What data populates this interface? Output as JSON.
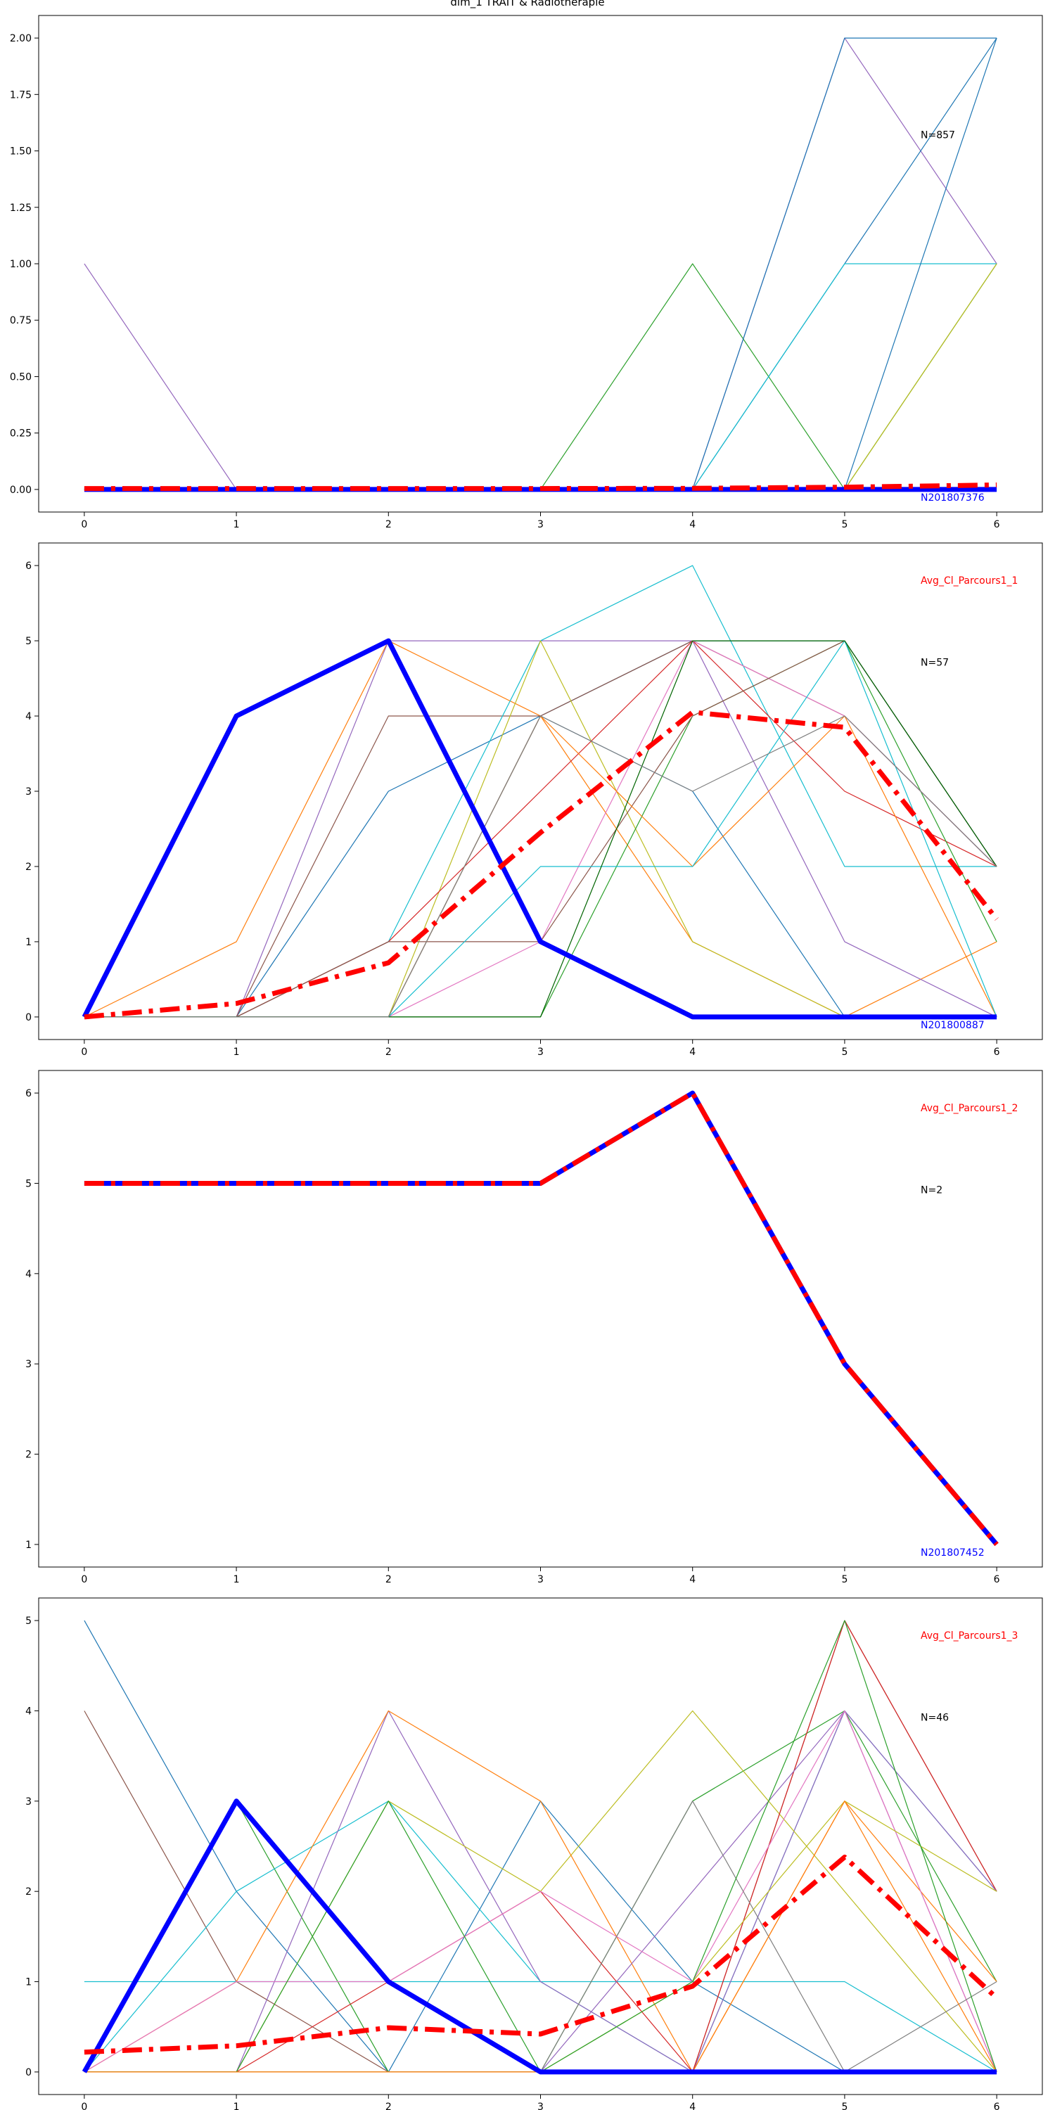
{
  "figure": {
    "title": "dim_1 TRAIT & Radiothérapie"
  },
  "chart_data": [
    {
      "type": "line",
      "title": "",
      "x": [
        0,
        1,
        2,
        3,
        4,
        5,
        6
      ],
      "ylim": [
        -0.1,
        2.1
      ],
      "yticks": [
        0.0,
        0.25,
        0.5,
        0.75,
        1.0,
        1.25,
        1.5,
        1.75,
        2.0
      ],
      "ytick_labels": [
        "0.00",
        "0.25",
        "0.50",
        "0.75",
        "1.00",
        "1.25",
        "1.50",
        "1.75",
        "2.00"
      ],
      "annotations": {
        "count_label": "N=857",
        "average_label": "",
        "highlight_label": "N201807376"
      },
      "colors": {
        "average": "#ff0000",
        "highlight": "#0000ff"
      },
      "series": [
        {
          "values": [
            1,
            0,
            0,
            0,
            0,
            2,
            1
          ],
          "color": "#9467bd"
        },
        {
          "values": [
            0,
            0,
            0,
            0,
            1,
            0,
            1
          ],
          "color": "#2ca02c"
        },
        {
          "values": [
            0,
            0,
            0,
            0,
            0,
            2,
            2
          ],
          "color": "#1f77b4"
        },
        {
          "values": [
            0,
            0,
            0,
            0,
            0,
            1,
            2
          ],
          "color": "#1f77b4"
        },
        {
          "values": [
            0,
            0,
            0,
            0,
            0,
            1,
            1
          ],
          "color": "#17becf"
        },
        {
          "values": [
            0,
            0,
            0,
            0,
            0,
            0,
            2
          ],
          "color": "#1f77b4"
        },
        {
          "values": [
            0,
            0,
            0,
            0,
            0,
            0,
            1
          ],
          "color": "#bcbd22"
        }
      ],
      "highlight": {
        "values": [
          0,
          0,
          0,
          0,
          0,
          0,
          0
        ]
      },
      "average": {
        "values": [
          0.004,
          0.004,
          0.004,
          0.004,
          0.005,
          0.01,
          0.02
        ]
      }
    },
    {
      "type": "line",
      "title": "",
      "x": [
        0,
        1,
        2,
        3,
        4,
        5,
        6
      ],
      "ylim": [
        -0.3,
        6.3
      ],
      "yticks": [
        0,
        1,
        2,
        3,
        4,
        5,
        6
      ],
      "ytick_labels": [
        "0",
        "1",
        "2",
        "3",
        "4",
        "5",
        "6"
      ],
      "annotations": {
        "count_label": "N=57",
        "average_label": "Avg_Cl_Parcours1_1",
        "highlight_label": "N201800887"
      },
      "colors": {
        "average": "#ff0000",
        "highlight": "#0000ff"
      },
      "series": [
        {
          "values": [
            0,
            1,
            5,
            4,
            1,
            0,
            1
          ],
          "color": "#ff7f0e"
        },
        {
          "values": [
            0,
            0,
            5,
            5,
            5,
            1,
            0
          ],
          "color": "#9467bd"
        },
        {
          "values": [
            0,
            0,
            3,
            4,
            5,
            5,
            2
          ],
          "color": "#1f77b4"
        },
        {
          "values": [
            0,
            0,
            4,
            4,
            5,
            4,
            2
          ],
          "color": "#8c564b"
        },
        {
          "values": [
            0,
            0,
            1,
            5,
            6,
            2,
            2
          ],
          "color": "#17becf"
        },
        {
          "values": [
            0,
            0,
            0,
            5,
            1,
            0,
            0
          ],
          "color": "#bcbd22"
        },
        {
          "values": [
            0,
            0,
            1,
            3,
            5,
            3,
            2
          ],
          "color": "#d62728"
        },
        {
          "values": [
            0,
            0,
            0,
            4,
            3,
            0,
            0
          ],
          "color": "#1f77b4"
        },
        {
          "values": [
            0,
            0,
            0,
            0,
            4,
            5,
            1
          ],
          "color": "#2ca02c"
        },
        {
          "values": [
            0,
            0,
            0,
            1,
            5,
            4,
            2
          ],
          "color": "#e377c2"
        },
        {
          "values": [
            0,
            0,
            1,
            1,
            4,
            5,
            2
          ],
          "color": "#8c564b"
        },
        {
          "values": [
            0,
            0,
            0,
            4,
            2,
            4,
            0
          ],
          "color": "#ff7f0e"
        },
        {
          "values": [
            0,
            0,
            0,
            2,
            2,
            5,
            0
          ],
          "color": "#17becf"
        },
        {
          "values": [
            0,
            0,
            0,
            0,
            5,
            5,
            2
          ],
          "color": "#006400"
        },
        {
          "values": [
            0,
            0,
            0,
            4,
            3,
            4,
            2
          ],
          "color": "#7f7f7f"
        }
      ],
      "highlight": {
        "values": [
          0,
          4,
          5,
          1,
          0,
          0,
          0
        ]
      },
      "average": {
        "values": [
          0.0,
          0.18,
          0.72,
          2.45,
          4.05,
          3.85,
          1.3
        ]
      }
    },
    {
      "type": "line",
      "title": "",
      "x": [
        0,
        1,
        2,
        3,
        4,
        5,
        6
      ],
      "ylim": [
        0.75,
        6.25
      ],
      "yticks": [
        1,
        2,
        3,
        4,
        5,
        6
      ],
      "ytick_labels": [
        "1",
        "2",
        "3",
        "4",
        "5",
        "6"
      ],
      "annotations": {
        "count_label": "N=2",
        "average_label": "Avg_Cl_Parcours1_2",
        "highlight_label": "N201807452"
      },
      "colors": {
        "average": "#ff0000",
        "highlight": "#0000ff"
      },
      "series": [],
      "highlight": {
        "values": [
          5,
          5,
          5,
          5,
          6,
          3,
          1
        ]
      },
      "average": {
        "values": [
          5,
          5,
          5,
          5,
          6,
          3,
          1
        ]
      }
    },
    {
      "type": "line",
      "title": "",
      "x": [
        0,
        1,
        2,
        3,
        4,
        5,
        6
      ],
      "ylim": [
        -0.25,
        5.25
      ],
      "yticks": [
        0,
        1,
        2,
        3,
        4,
        5
      ],
      "ytick_labels": [
        "0",
        "1",
        "2",
        "3",
        "4",
        "5"
      ],
      "annotations": {
        "count_label": "N=46",
        "average_label": "Avg_Cl_Parcours1_3",
        "highlight_label": ""
      },
      "colors": {
        "average": "#ff0000",
        "highlight": "#0000ff"
      },
      "series": [
        {
          "values": [
            5,
            2,
            0,
            3,
            1,
            0,
            0
          ],
          "color": "#1f77b4"
        },
        {
          "values": [
            4,
            1,
            0,
            0,
            0,
            5,
            2
          ],
          "color": "#8c564b"
        },
        {
          "values": [
            1,
            1,
            1,
            1,
            1,
            1,
            0
          ],
          "color": "#17becf"
        },
        {
          "values": [
            0,
            3,
            0,
            0,
            3,
            4,
            1
          ],
          "color": "#2ca02c"
        },
        {
          "values": [
            0,
            2,
            3,
            1,
            0,
            4,
            2
          ],
          "color": "#17becf"
        },
        {
          "values": [
            0,
            0,
            4,
            1,
            0,
            4,
            0
          ],
          "color": "#9467bd"
        },
        {
          "values": [
            0,
            0,
            3,
            2,
            4,
            2,
            0
          ],
          "color": "#bcbd22"
        },
        {
          "values": [
            0,
            1,
            4,
            3,
            0,
            3,
            1
          ],
          "color": "#ff7f0e"
        },
        {
          "values": [
            0,
            0,
            1,
            2,
            0,
            5,
            2
          ],
          "color": "#d62728"
        },
        {
          "values": [
            0,
            0,
            0,
            0,
            2,
            4,
            2
          ],
          "color": "#9467bd"
        },
        {
          "values": [
            0,
            1,
            1,
            2,
            1,
            4,
            0
          ],
          "color": "#e377c2"
        },
        {
          "values": [
            0,
            0,
            0,
            0,
            3,
            0,
            1
          ],
          "color": "#7f7f7f"
        },
        {
          "values": [
            0,
            0,
            0,
            0,
            1,
            3,
            2
          ],
          "color": "#bcbd22"
        },
        {
          "values": [
            0,
            0,
            3,
            0,
            1,
            5,
            0
          ],
          "color": "#2ca02c"
        },
        {
          "values": [
            0,
            0,
            0,
            0,
            0,
            3,
            0
          ],
          "color": "#ff7f0e"
        }
      ],
      "highlight": {
        "values": [
          0,
          3,
          1,
          0,
          0,
          0,
          0
        ]
      },
      "average": {
        "values": [
          0.22,
          0.29,
          0.49,
          0.42,
          0.95,
          2.38,
          0.82
        ]
      }
    }
  ]
}
